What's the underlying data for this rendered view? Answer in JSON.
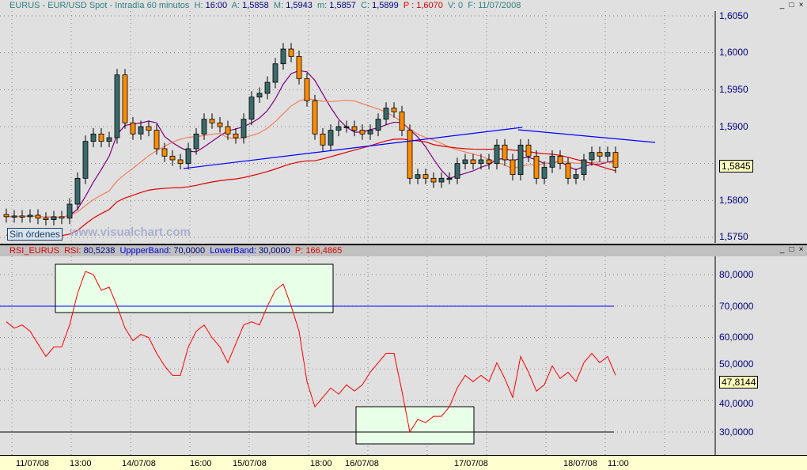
{
  "header": {
    "symbol": "EURUS - EUR/USD Spot - Intradía 60 minutos",
    "h_label": "H:",
    "h": "16:00",
    "a_label": "A:",
    "a": "1,5858",
    "m_label": "M:",
    "m": "1,5943",
    "mn_label": "m:",
    "mn": "1,5857",
    "c_label": "C:",
    "c": "1,5899",
    "p": "P : 1,6070",
    "v": "V: 0",
    "f": "F: 11/07/2008"
  },
  "rsi_header": {
    "name": "RSI_EURUS",
    "rsi_label": "RSI:",
    "rsi": "80,5238",
    "upper_label": "UppperBand:",
    "upper": "70,0000",
    "lower_label": "LowerBand:",
    "lower": "30,0000",
    "p": "P: 166,4865"
  },
  "price_axis": [
    "1,6050",
    "1,6000",
    "1,5950",
    "1,5900",
    "1,5800",
    "1,5750"
  ],
  "price_tag": "1,5845",
  "rsi_axis": [
    "80,0000",
    "70,0000",
    "60,0000",
    "50,0000",
    "40,0000",
    "30,0000"
  ],
  "rsi_tag": "47,8144",
  "x_labels": [
    "11/07/08",
    "13:00",
    "14/07/08",
    "16:00",
    "15/07/08",
    "18:00",
    "16/07/08",
    "17/07/08",
    "18/07/08",
    "11:00"
  ],
  "status": {
    "orders": "Sin órdenes",
    "watermark": "www.visualchart.com"
  },
  "window_controls": {
    "minimize": "_",
    "maximize": "□",
    "close": "×"
  },
  "colors": {
    "bull": "#3a6a6a",
    "bear": "#ff8c00",
    "ma_fast": "#800080",
    "ma_mid": "#f08060",
    "ma_slow": "#e00000",
    "rsi": "#ff0000",
    "trend": "#0000ff"
  },
  "chart_data": {
    "type": "candlestick+rsi",
    "price_closes": [
      1.5778,
      1.5779,
      1.5778,
      1.578,
      1.5776,
      1.5774,
      1.5778,
      1.5776,
      1.5795,
      1.583,
      1.588,
      1.589,
      1.588,
      1.5885,
      1.597,
      1.5905,
      1.589,
      1.59,
      1.5895,
      1.587,
      1.586,
      1.5855,
      1.585,
      1.587,
      1.589,
      1.591,
      1.5905,
      1.59,
      1.589,
      1.5885,
      1.591,
      1.594,
      1.5945,
      1.596,
      1.5985,
      1.6005,
      1.5995,
      1.5965,
      1.5935,
      1.589,
      1.5875,
      1.5895,
      1.59,
      1.59,
      1.5895,
      1.589,
      1.5895,
      1.591,
      1.5925,
      1.592,
      1.5895,
      1.583,
      1.5835,
      1.583,
      1.5825,
      1.583,
      1.583,
      1.585,
      1.5855,
      1.585,
      1.5855,
      1.585,
      1.5875,
      1.5855,
      1.5835,
      1.5875,
      1.586,
      1.583,
      1.5845,
      1.586,
      1.585,
      1.583,
      1.5835,
      1.5855,
      1.5865,
      1.586,
      1.5865,
      1.5845
    ],
    "rsi_values": [
      65,
      63,
      64,
      62,
      58,
      54,
      57,
      57,
      64,
      74,
      81,
      80,
      75,
      76,
      70,
      63,
      59,
      61,
      60,
      55,
      51,
      48,
      48,
      57,
      62,
      64,
      60,
      57,
      52,
      58,
      64,
      65,
      64,
      70,
      75,
      77,
      70,
      62,
      46,
      38,
      41,
      44,
      42,
      45,
      43,
      45,
      49,
      52,
      55,
      55,
      43,
      30,
      34,
      33,
      35,
      35,
      38,
      44,
      48,
      46,
      48,
      46,
      52,
      47,
      41,
      54,
      49,
      43,
      45,
      51,
      47,
      49,
      46,
      52,
      55,
      52,
      54,
      48
    ],
    "price_ylim": [
      1.5735,
      1.6068
    ],
    "rsi_ylim": [
      24,
      86
    ],
    "rsi_bands": [
      70,
      30
    ]
  }
}
